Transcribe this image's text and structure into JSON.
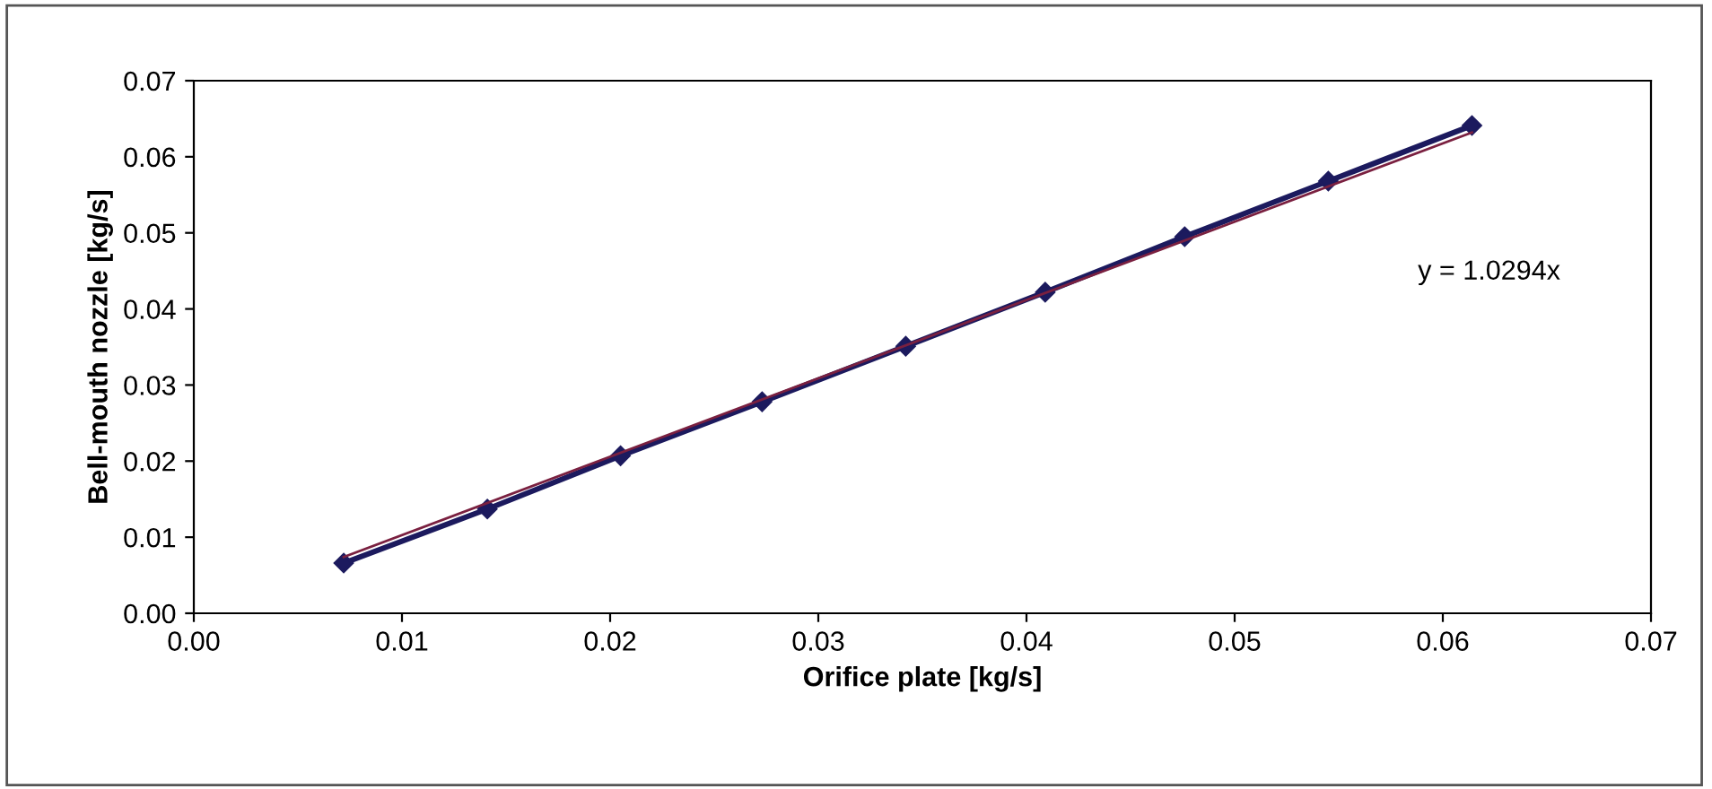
{
  "chart_data": {
    "type": "line",
    "xlabel": "Orifice plate [kg/s]",
    "ylabel": "Bell-mouth nozzle [kg/s]",
    "x": [
      0.0072,
      0.0141,
      0.0205,
      0.0273,
      0.0342,
      0.0409,
      0.0476,
      0.0545,
      0.0614
    ],
    "series": [
      {
        "color": "#1c1a5e",
        "marker": "diamond",
        "values": [
          0.0066,
          0.0137,
          0.0207,
          0.0278,
          0.0351,
          0.0422,
          0.0495,
          0.0568,
          0.0641
        ]
      },
      {
        "type": "line",
        "color": "#7a2040",
        "marker": "none",
        "x": [
          0.0072,
          0.0614
        ],
        "values": [
          0.0074,
          0.0632
        ]
      }
    ],
    "annotations": [
      "y = 1.0294x"
    ],
    "xlim": [
      0,
      0.07
    ],
    "ylim": [
      0,
      0.07
    ],
    "xticks": [
      {
        "value": 0,
        "label": "0.00"
      },
      {
        "value": 0.01,
        "label": "0.01"
      },
      {
        "value": 0.02,
        "label": "0.02"
      },
      {
        "value": 0.03,
        "label": "0.03"
      },
      {
        "value": 0.04,
        "label": "0.04"
      },
      {
        "value": 0.05,
        "label": "0.05"
      },
      {
        "value": 0.06,
        "label": "0.06"
      },
      {
        "value": 0.07,
        "label": "0.07"
      }
    ],
    "yticks": [
      {
        "value": 0,
        "label": "0.00"
      },
      {
        "value": 0.01,
        "label": "0.01"
      },
      {
        "value": 0.02,
        "label": "0.02"
      },
      {
        "value": 0.03,
        "label": "0.03"
      },
      {
        "value": 0.04,
        "label": "0.04"
      },
      {
        "value": 0.05,
        "label": "0.05"
      },
      {
        "value": 0.06,
        "label": "0.06"
      },
      {
        "value": 0.07,
        "label": "0.07"
      }
    ],
    "grid": false,
    "legend": false
  }
}
